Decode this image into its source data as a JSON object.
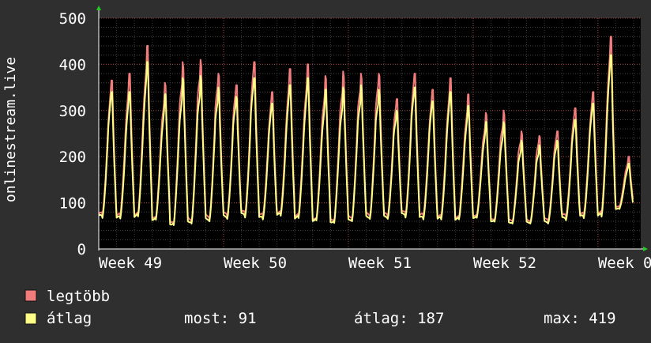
{
  "chart_data": {
    "type": "line",
    "ylabel": "onlinestream.live",
    "ylim": [
      0,
      500
    ],
    "yticks": [
      0,
      100,
      200,
      300,
      400,
      500
    ],
    "x_labels": [
      "Week 49",
      "Week 50",
      "Week 51",
      "Week 52",
      "Week 0"
    ],
    "x_label_positions_days": [
      0,
      7,
      14,
      21,
      28
    ],
    "x_range_days": [
      0,
      30.4
    ],
    "grid": true,
    "colors": {
      "background": "#2f2f2f",
      "plot": "#000000",
      "grid": "#555555",
      "legtobb": "#f07c7c",
      "atlag": "#ffff88"
    },
    "series": [
      {
        "name": "legtöbb",
        "color": "#f07c7c",
        "daily_peaks": [
          365,
          380,
          440,
          360,
          405,
          410,
          380,
          355,
          405,
          340,
          390,
          400,
          375,
          385,
          380,
          380,
          325,
          380,
          345,
          370,
          335,
          295,
          300,
          255,
          245,
          255,
          305,
          340,
          460,
          200
        ],
        "daily_lows": [
          70,
          68,
          70,
          65,
          55,
          60,
          65,
          70,
          72,
          68,
          72,
          68,
          62,
          60,
          65,
          70,
          70,
          72,
          68,
          65,
          65,
          70,
          62,
          60,
          58,
          60,
          68,
          70,
          70,
          90
        ]
      },
      {
        "name": "átlag",
        "color": "#ffff88",
        "daily_peaks": [
          340,
          340,
          405,
          335,
          370,
          375,
          350,
          330,
          370,
          315,
          355,
          370,
          345,
          350,
          355,
          345,
          300,
          350,
          320,
          340,
          310,
          275,
          275,
          235,
          225,
          235,
          280,
          315,
          420,
          185
        ],
        "daily_lows": [
          65,
          62,
          65,
          60,
          50,
          55,
          60,
          65,
          68,
          62,
          68,
          62,
          58,
          55,
          60,
          65,
          65,
          68,
          62,
          60,
          60,
          65,
          58,
          55,
          55,
          55,
          62,
          65,
          65,
          85
        ]
      }
    ]
  },
  "legend": [
    {
      "label": "legtöbb",
      "color": "#f07c7c"
    },
    {
      "label": "átlag",
      "color": "#ffff88"
    }
  ],
  "stats": {
    "current": "most: 91",
    "average": "átlag: 187",
    "max": "max: 419"
  }
}
